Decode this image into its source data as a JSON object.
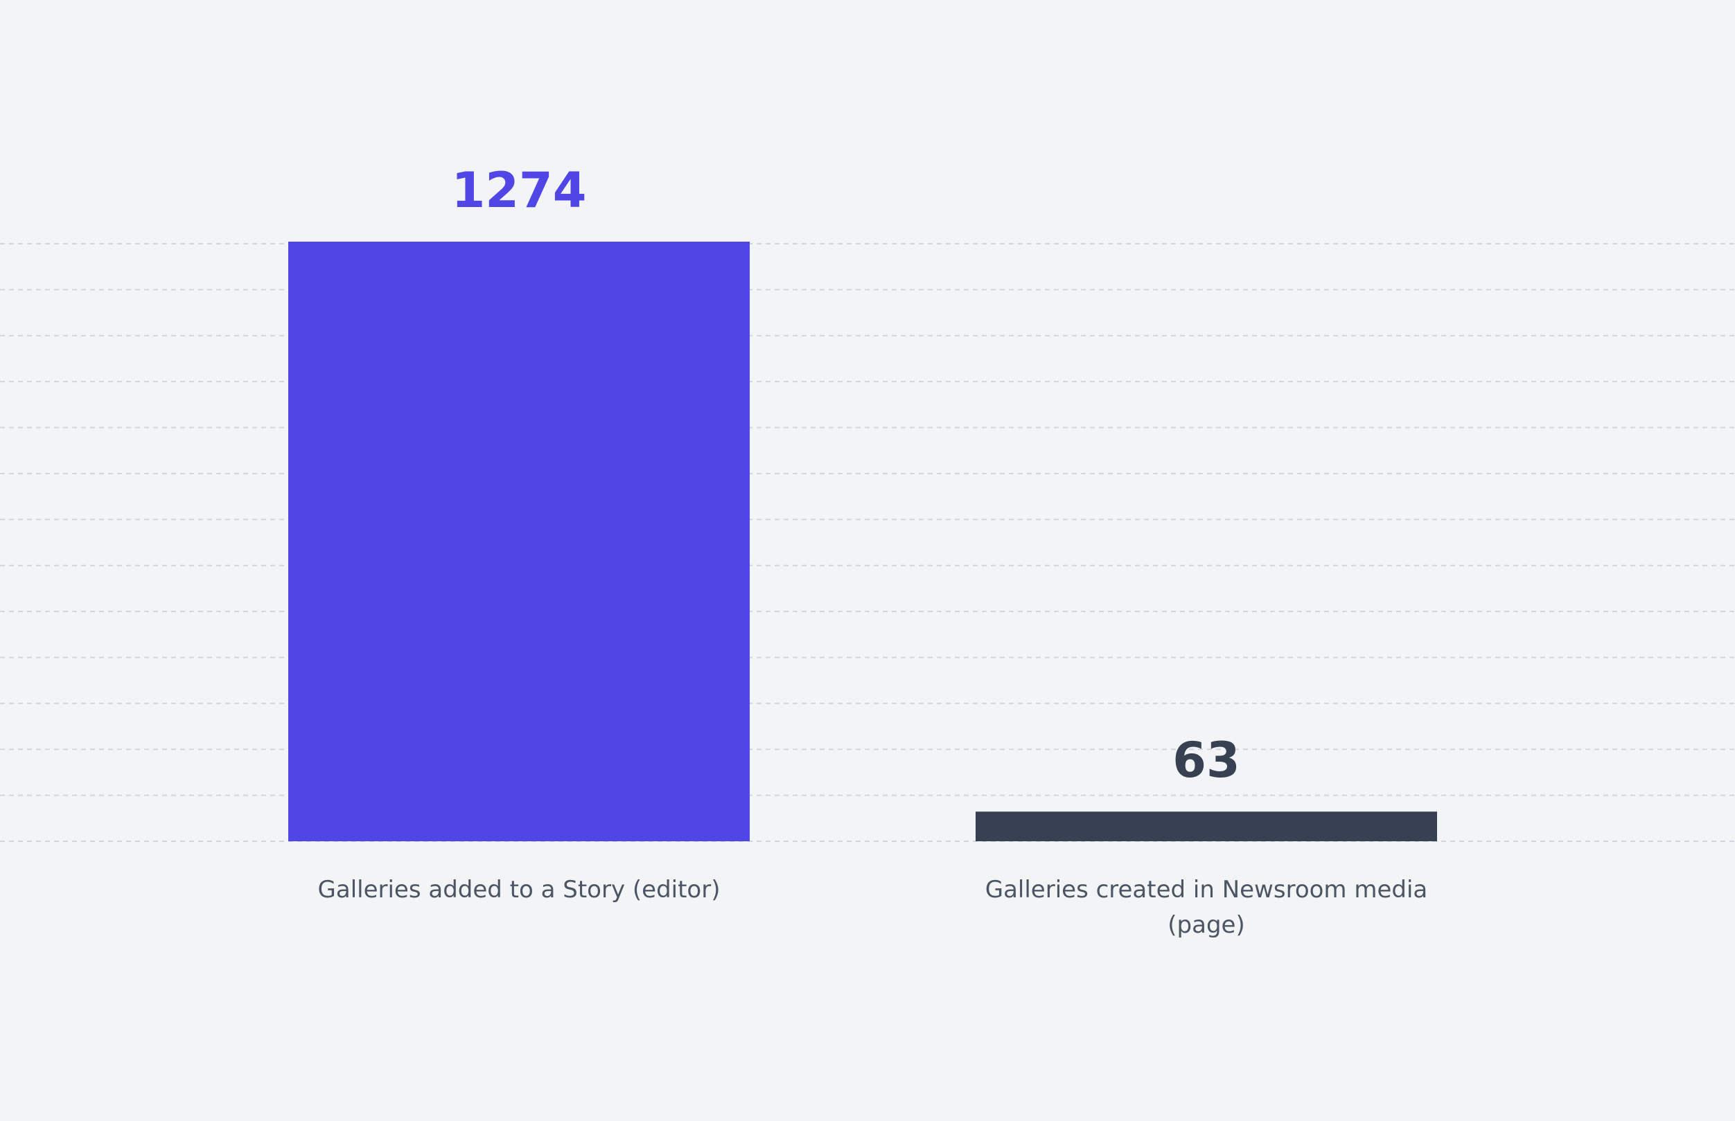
{
  "chart_data": {
    "type": "bar",
    "categories": [
      "Galleries added to a Story (editor)",
      "Galleries created in Newsroom media (page)"
    ],
    "category_lines": [
      [
        "Galleries added to a Story (editor)"
      ],
      [
        "Galleries created in Newsroom media",
        "(page)"
      ]
    ],
    "values": [
      1274,
      63
    ],
    "value_labels": [
      "1274",
      "63"
    ],
    "bar_colors": [
      "#4f46e5",
      "#374151"
    ],
    "value_label_colors": [
      "#4f46e5",
      "#374151"
    ],
    "category_label_color": "#4b5563",
    "grid_color": "#d1d5db",
    "background_color": "#f3f4f6",
    "ylim": [
      0,
      1300
    ],
    "grid": true,
    "gridline_count": 14,
    "title": "",
    "xlabel": "",
    "ylabel": ""
  }
}
